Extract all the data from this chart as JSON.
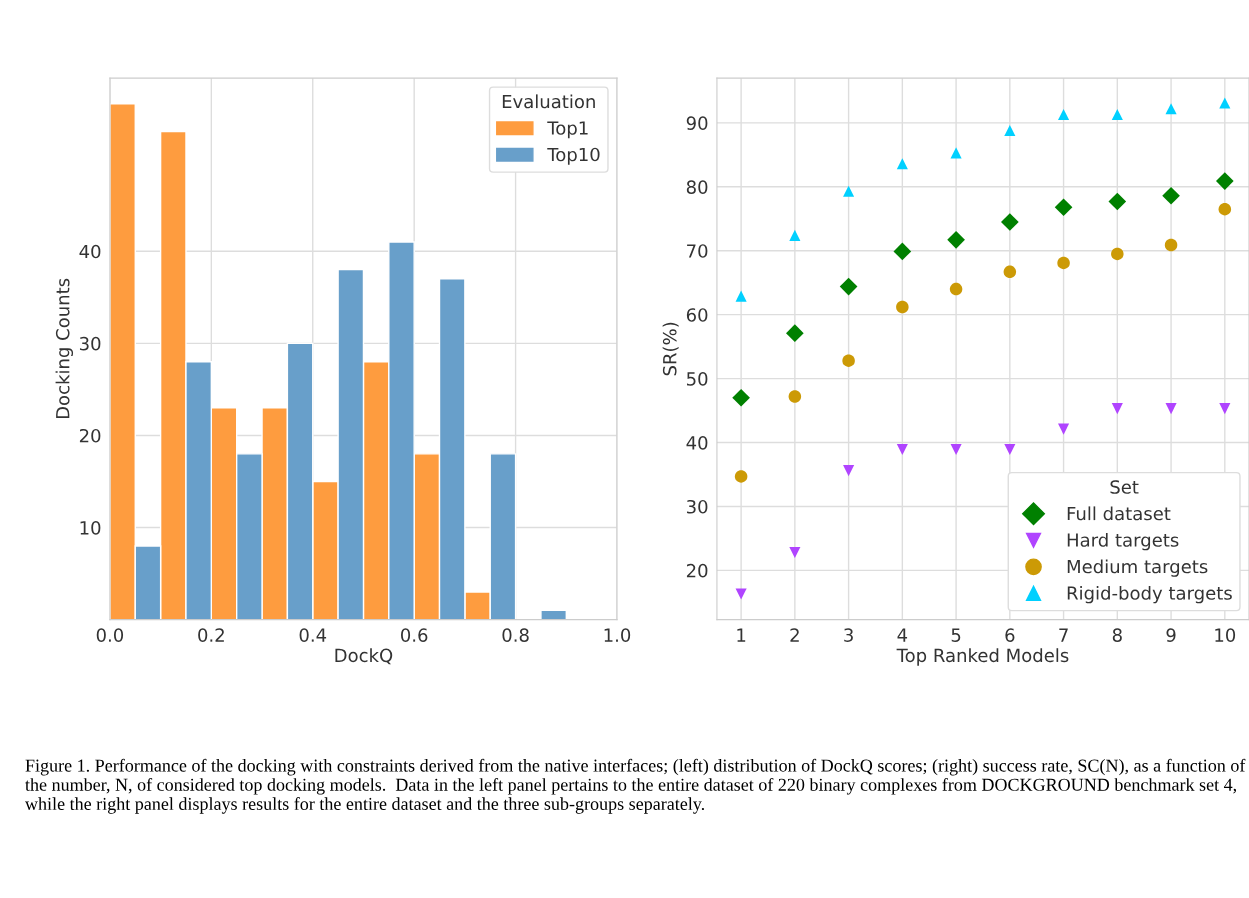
{
  "chart_data": [
    {
      "type": "histogram",
      "xlabel": "DockQ",
      "ylabel": "Docking Counts",
      "legend_title": "Evaluation",
      "legend": "top right",
      "grid": true,
      "bins": [
        0.0,
        0.1,
        0.2,
        0.3,
        0.4,
        0.5,
        0.6,
        0.7,
        0.8,
        0.9,
        1.0
      ],
      "series": [
        {
          "name": "Top1",
          "color": "#fe9c3f",
          "values": [
            56,
            53,
            23,
            23,
            15,
            28,
            18,
            3,
            0,
            0
          ]
        },
        {
          "name": "Top10",
          "color": "#689fca",
          "values": [
            8,
            28,
            18,
            30,
            38,
            41,
            37,
            18,
            1,
            0
          ]
        }
      ],
      "xlim": [
        0.0,
        1.0
      ],
      "xticks": [
        {
          "value": 0.0,
          "label": "0.0"
        },
        0.2,
        0.4,
        0.6,
        0.8,
        {
          "value": 1.0,
          "label": "1.0"
        }
      ],
      "ylim": [
        0,
        58.8
      ],
      "yticks": [
        10,
        20,
        30,
        40
      ],
      "annotations": [
        "Figure 1. Performance of the docking with constraints derived from the native interfaces; (left) distribution of DockQ scores; (right) success rate, SC(N), as a function of the number, N, of considered top docking models.  Data in the left panel pertains to the entire dataset of 220 binary complexes from DOCKGROUND benchmark set 4, while the right panel displays results for the entire dataset and the three sub-groups separately."
      ]
    },
    {
      "type": "scatter",
      "xlabel": "Top Ranked Models",
      "ylabel": "SR(%)",
      "legend_title": "Set",
      "legend": "bottom right",
      "grid": true,
      "categories": [
        "1",
        "2",
        "3",
        "4",
        "5",
        "6",
        "7",
        "8",
        "9",
        "10"
      ],
      "series": [
        {
          "name": "Full dataset",
          "color": "#008000",
          "marker": "diamond",
          "values": [
            47.0,
            57.1,
            64.4,
            69.9,
            71.7,
            74.5,
            76.8,
            77.7,
            78.6,
            80.9
          ]
        },
        {
          "name": "Hard targets",
          "color": "#b044ff",
          "marker": "triangle_down",
          "values": [
            16.3,
            22.8,
            35.6,
            38.9,
            38.9,
            38.9,
            42.1,
            45.3,
            45.3,
            45.3
          ]
        },
        {
          "name": "Medium targets",
          "color": "#cc9a06",
          "marker": "circle",
          "values": [
            34.7,
            47.2,
            52.8,
            61.2,
            64.0,
            66.7,
            68.1,
            69.5,
            70.9,
            76.5
          ]
        },
        {
          "name": "Rigid-body targets",
          "color": "#00d0ff",
          "marker": "triangle",
          "values": [
            62.9,
            72.4,
            79.3,
            83.6,
            85.3,
            88.8,
            91.3,
            91.3,
            92.2,
            93.1
          ]
        }
      ],
      "ylim": [
        12.3,
        97.0
      ],
      "yticks": [
        20,
        30,
        40,
        50,
        60,
        70,
        80,
        90
      ]
    }
  ]
}
